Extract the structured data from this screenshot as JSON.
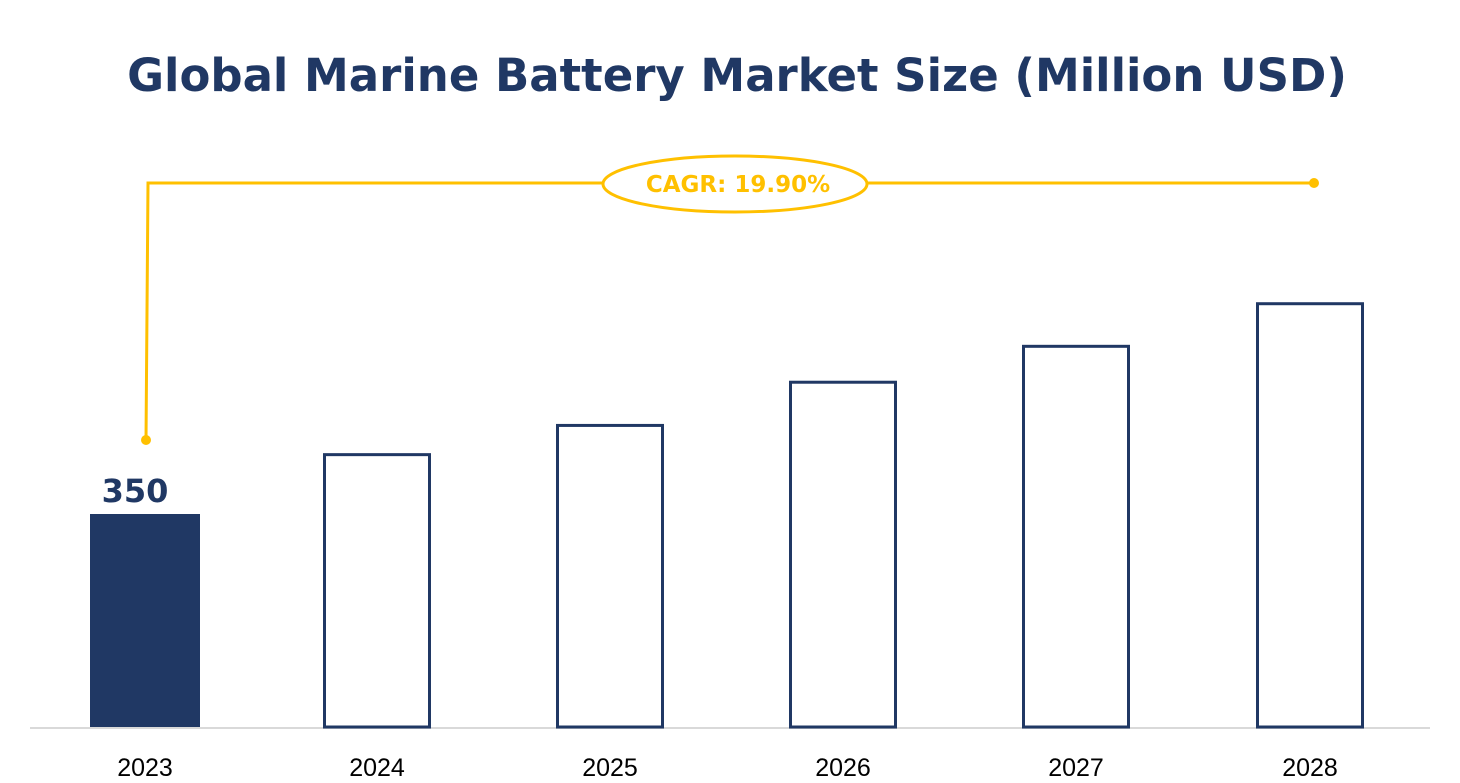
{
  "chart_data": {
    "type": "bar",
    "title": "Global Marine Battery Market Size (Million USD)",
    "categories": [
      "2023",
      "2024",
      "2025",
      "2026",
      "2027",
      "2028"
    ],
    "values": [
      350,
      450,
      498,
      569,
      628,
      698
    ],
    "data_labels": {
      "2023": "350"
    },
    "annotation": "CAGR: 19.90%",
    "xlabel": "",
    "ylabel": "",
    "ylim": [
      0,
      1200
    ],
    "grid": false,
    "legend": "none",
    "colors": {
      "filled_bar": "#203864",
      "outline_bar": "#203864",
      "cagr": "#FFC000",
      "axis": "#D9D9D9"
    }
  }
}
